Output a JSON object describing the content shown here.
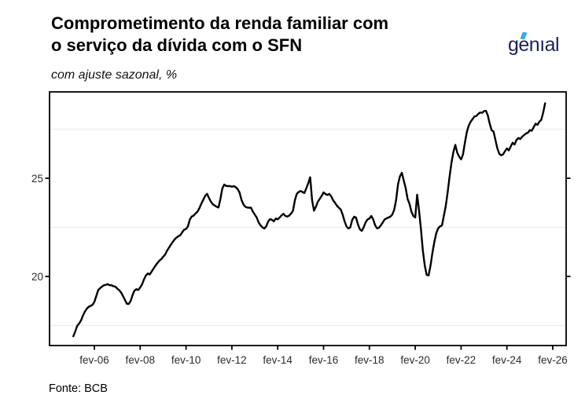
{
  "header": {
    "title_line1": "Comprometimento da renda familiar com",
    "title_line2": "o serviço da dívida com o SFN",
    "subtitle": "com ajuste sazonal, %"
  },
  "logo": {
    "text": "genıal",
    "color": "#1c2257",
    "accent_color": "#3fa9e6"
  },
  "footer": {
    "source": "Fonte: BCB"
  },
  "chart_data": {
    "type": "line",
    "title": "Comprometimento da renda familiar com o serviço da dívida com o SFN",
    "subtitle": "com ajuste sazonal, %",
    "xlabel": "",
    "ylabel": "",
    "legend": "none",
    "grid": "minor-horizontal-only",
    "minor_gridlines": [
      17.5,
      22.5,
      27.5
    ],
    "gridline_color": "#ececec",
    "y_ticks": [
      20,
      25
    ],
    "ylim": [
      16.48,
      29.4
    ],
    "xlim_t": [
      2004.128,
      2026.667
    ],
    "x_ticks": [
      {
        "label": "fev-06",
        "year": 2006,
        "month": 2
      },
      {
        "label": "fev-08",
        "year": 2008,
        "month": 2
      },
      {
        "label": "fev-10",
        "year": 2010,
        "month": 2
      },
      {
        "label": "fev-12",
        "year": 2012,
        "month": 2
      },
      {
        "label": "fev-14",
        "year": 2014,
        "month": 2
      },
      {
        "label": "fev-16",
        "year": 2016,
        "month": 2
      },
      {
        "label": "fev-18",
        "year": 2018,
        "month": 2
      },
      {
        "label": "fev-20",
        "year": 2020,
        "month": 2
      },
      {
        "label": "fev-22",
        "year": 2022,
        "month": 2
      },
      {
        "label": "fev-24",
        "year": 2024,
        "month": 2
      },
      {
        "label": "fev-26",
        "year": 2026,
        "month": 2
      }
    ],
    "line_color": "#000000",
    "line_width": 2.4,
    "series": [
      {
        "name": "Comprometimento da renda familiar com o serviço da dívida com o SFN (com ajuste sazonal, %)",
        "frequency": "monthly",
        "start": {
          "year": 2005,
          "month": 3
        },
        "values": [
          16.95,
          17.2,
          17.48,
          17.6,
          17.75,
          18.0,
          18.2,
          18.35,
          18.45,
          18.5,
          18.55,
          18.7,
          19.0,
          19.3,
          19.4,
          19.48,
          19.55,
          19.57,
          19.61,
          19.55,
          19.55,
          19.5,
          19.48,
          19.38,
          19.3,
          19.18,
          19.0,
          18.81,
          18.61,
          18.6,
          18.75,
          19.05,
          19.28,
          19.35,
          19.31,
          19.44,
          19.6,
          19.85,
          20.05,
          20.15,
          20.1,
          20.25,
          20.4,
          20.55,
          20.68,
          20.8,
          20.88,
          21.0,
          21.1,
          21.3,
          21.45,
          21.61,
          21.75,
          21.88,
          21.98,
          22.05,
          22.1,
          22.25,
          22.38,
          22.42,
          22.55,
          22.9,
          23.05,
          23.1,
          23.21,
          23.3,
          23.48,
          23.7,
          23.9,
          24.1,
          24.21,
          24.0,
          23.81,
          23.68,
          23.61,
          23.55,
          23.51,
          23.95,
          24.48,
          24.68,
          24.61,
          24.6,
          24.6,
          24.57,
          24.6,
          24.55,
          24.45,
          24.28,
          23.91,
          23.68,
          23.55,
          23.51,
          23.5,
          23.5,
          23.3,
          23.15,
          23.0,
          22.75,
          22.6,
          22.5,
          22.44,
          22.55,
          22.8,
          22.92,
          22.88,
          22.81,
          22.95,
          22.91,
          23.0,
          23.11,
          23.19,
          23.08,
          23.05,
          23.1,
          23.2,
          23.35,
          23.88,
          24.21,
          24.3,
          24.35,
          24.3,
          24.25,
          24.5,
          24.75,
          25.05,
          23.88,
          23.35,
          23.55,
          23.8,
          23.95,
          24.1,
          24.28,
          24.2,
          24.15,
          24.2,
          24.08,
          23.88,
          23.75,
          23.6,
          23.5,
          23.41,
          23.15,
          22.81,
          22.55,
          22.44,
          22.5,
          22.88,
          23.04,
          23.0,
          22.65,
          22.4,
          22.32,
          22.5,
          22.75,
          22.9,
          22.95,
          23.08,
          22.9,
          22.61,
          22.45,
          22.48,
          22.6,
          22.75,
          22.9,
          22.96,
          23.0,
          23.05,
          23.15,
          23.4,
          23.9,
          24.7,
          25.1,
          25.28,
          24.88,
          24.5,
          23.95,
          23.7,
          23.3,
          23.08,
          23.0,
          24.16,
          23.35,
          22.4,
          21.3,
          20.55,
          20.08,
          20.05,
          20.55,
          21.2,
          21.75,
          22.2,
          22.45,
          22.55,
          22.6,
          23.1,
          23.6,
          24.3,
          25.1,
          25.8,
          26.35,
          26.7,
          26.3,
          26.1,
          25.96,
          26.21,
          26.81,
          27.35,
          27.68,
          27.88,
          28.01,
          28.15,
          28.17,
          28.28,
          28.35,
          28.33,
          28.42,
          28.44,
          28.2,
          27.78,
          27.45,
          27.38,
          26.95,
          26.52,
          26.25,
          26.17,
          26.22,
          26.38,
          26.52,
          26.42,
          26.62,
          26.81,
          26.72,
          26.95,
          27.05,
          27.0,
          27.12,
          27.2,
          27.28,
          27.32,
          27.45,
          27.42,
          27.6,
          27.78,
          27.72,
          27.88,
          27.98,
          28.35,
          28.82
        ]
      }
    ]
  }
}
